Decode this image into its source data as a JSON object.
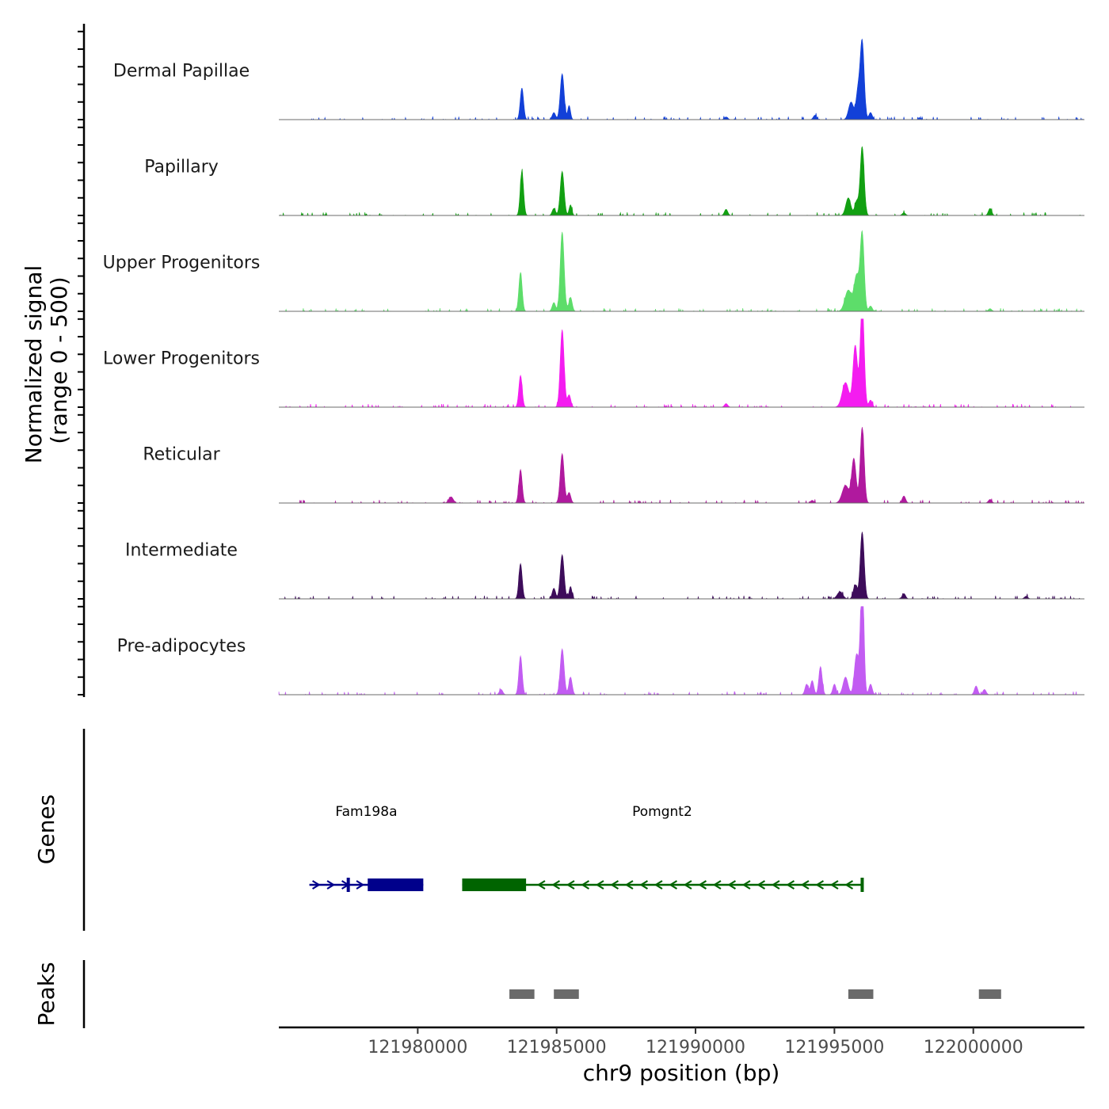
{
  "chart_data": {
    "type": "area",
    "chromosome": "chr9",
    "x_range_bp": [
      121975000,
      122004000
    ],
    "xlabel": "chr9 position (bp)",
    "x_ticks": [
      121980000,
      121985000,
      121990000,
      121995000,
      122000000
    ],
    "x_tick_labels": [
      "121980000",
      "121985000",
      "121990000",
      "121995000",
      "122000000"
    ],
    "ylabel_line1": "Normalized signal",
    "ylabel_line2": "(range 0 - 500)",
    "ylim": [
      0,
      500
    ],
    "tracks": [
      {
        "name": "Dermal Papillae",
        "color": "#1240d8",
        "baseline": 0,
        "bumps": [
          [
            121983750,
            180,
            60
          ],
          [
            121985200,
            260,
            70
          ],
          [
            121985450,
            80,
            50
          ],
          [
            121984900,
            40,
            60
          ],
          [
            121995600,
            100,
            90
          ],
          [
            121995850,
            160,
            70
          ],
          [
            121996000,
            440,
            70
          ],
          [
            121996300,
            40,
            60
          ],
          [
            121994300,
            25,
            60
          ],
          [
            121991100,
            15,
            60
          ]
        ]
      },
      {
        "name": "Papillary",
        "color": "#12a012",
        "baseline": 0,
        "bumps": [
          [
            121983750,
            250,
            60
          ],
          [
            121985200,
            250,
            70
          ],
          [
            121985500,
            60,
            50
          ],
          [
            121984900,
            40,
            60
          ],
          [
            121995500,
            100,
            90
          ],
          [
            121995800,
            80,
            70
          ],
          [
            121996000,
            390,
            70
          ],
          [
            121991100,
            35,
            60
          ],
          [
            122000600,
            40,
            60
          ],
          [
            121997500,
            15,
            60
          ]
        ]
      },
      {
        "name": "Upper Progenitors",
        "color": "#5ddd6a",
        "baseline": 0,
        "bumps": [
          [
            121983700,
            220,
            60
          ],
          [
            121985200,
            450,
            70
          ],
          [
            121985500,
            80,
            60
          ],
          [
            121984900,
            50,
            60
          ],
          [
            121995500,
            120,
            120
          ],
          [
            121995800,
            200,
            90
          ],
          [
            121996000,
            440,
            70
          ],
          [
            121996300,
            30,
            60
          ],
          [
            122000600,
            15,
            60
          ]
        ]
      },
      {
        "name": "Lower Progenitors",
        "color": "#f41cf0",
        "baseline": 0,
        "bumps": [
          [
            121983700,
            180,
            60
          ],
          [
            121985200,
            440,
            70
          ],
          [
            121985450,
            70,
            60
          ],
          [
            121995400,
            140,
            120
          ],
          [
            121995750,
            350,
            80
          ],
          [
            121996000,
            590,
            70
          ],
          [
            121996300,
            40,
            60
          ],
          [
            121991100,
            20,
            60
          ]
        ]
      },
      {
        "name": "Reticular",
        "color": "#b0199e",
        "baseline": 0,
        "bumps": [
          [
            121981200,
            35,
            80
          ],
          [
            121983700,
            190,
            60
          ],
          [
            121985200,
            280,
            70
          ],
          [
            121985450,
            60,
            60
          ],
          [
            121995400,
            100,
            120
          ],
          [
            121995700,
            250,
            80
          ],
          [
            121996000,
            430,
            70
          ],
          [
            121997500,
            40,
            60
          ],
          [
            122000600,
            20,
            60
          ],
          [
            121994200,
            15,
            60
          ]
        ]
      },
      {
        "name": "Intermediate",
        "color": "#3d0c5a",
        "baseline": 0,
        "bumps": [
          [
            121983700,
            200,
            60
          ],
          [
            121984900,
            60,
            60
          ],
          [
            121985200,
            250,
            70
          ],
          [
            121985500,
            70,
            50
          ],
          [
            121995200,
            40,
            100
          ],
          [
            121995750,
            80,
            70
          ],
          [
            121996000,
            380,
            70
          ],
          [
            121997500,
            30,
            60
          ],
          [
            122001900,
            15,
            60
          ]
        ]
      },
      {
        "name": "Pre-adipocytes",
        "color": "#c25cf2",
        "baseline": 0,
        "bumps": [
          [
            121983000,
            30,
            60
          ],
          [
            121983700,
            220,
            60
          ],
          [
            121985200,
            260,
            70
          ],
          [
            121985500,
            100,
            60
          ],
          [
            121994000,
            60,
            60
          ],
          [
            121994200,
            80,
            60
          ],
          [
            121994500,
            160,
            60
          ],
          [
            121995000,
            60,
            60
          ],
          [
            121995400,
            100,
            90
          ],
          [
            121995800,
            230,
            80
          ],
          [
            121996000,
            700,
            60
          ],
          [
            121996300,
            60,
            60
          ],
          [
            122000100,
            50,
            60
          ],
          [
            122000400,
            30,
            60
          ]
        ]
      }
    ],
    "genes_label": "Genes",
    "genes": [
      {
        "name": "Fam198a",
        "strand": "+",
        "color": "#00008b",
        "start": 121976100,
        "end": 121980200,
        "cds": [
          [
            121978200,
            121980200
          ]
        ],
        "exon_marks": [
          121977500
        ]
      },
      {
        "name": "Pomgnt2",
        "strand": "-",
        "color": "#006400",
        "start": 121981600,
        "end": 121996000,
        "cds": [
          [
            121981600,
            121983900
          ]
        ],
        "exon_marks": [
          121996000
        ]
      }
    ],
    "peaks_label": "Peaks",
    "peaks_color": "#6a6a6a",
    "peaks": [
      [
        121983300,
        121984200
      ],
      [
        121984900,
        121985800
      ],
      [
        121995500,
        121996400
      ],
      [
        122000200,
        122001000
      ]
    ]
  }
}
